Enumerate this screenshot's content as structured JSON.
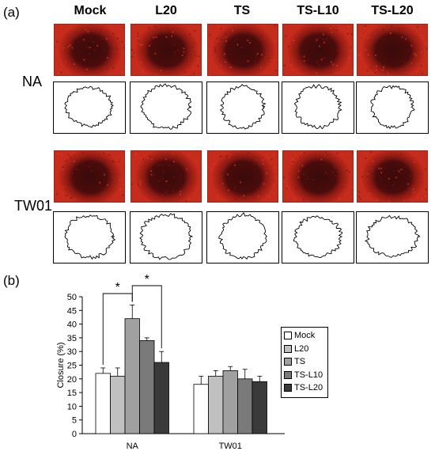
{
  "figure": {
    "panel_a_label": "(a)",
    "panel_b_label": "(b)",
    "column_headers": [
      "Mock",
      "L20",
      "TS",
      "TS-L10",
      "TS-L20"
    ],
    "row_labels": [
      "NA",
      "TW01"
    ]
  },
  "chart_data": {
    "type": "bar",
    "categories": [
      "NA",
      "TW01"
    ],
    "ylabel": "Closure (%)",
    "xlabel": "",
    "ylim": [
      0,
      50
    ],
    "yticks": [
      0,
      5,
      10,
      15,
      20,
      25,
      30,
      35,
      40,
      45,
      50
    ],
    "series": [
      {
        "name": "Mock",
        "values": [
          22,
          18
        ],
        "errors": [
          2,
          3
        ],
        "color": "#ffffff"
      },
      {
        "name": "L20",
        "values": [
          21,
          21
        ],
        "errors": [
          3,
          2
        ],
        "color": "#c0c0c0"
      },
      {
        "name": "TS",
        "values": [
          42,
          23
        ],
        "errors": [
          5,
          1.5
        ],
        "color": "#a0a0a0"
      },
      {
        "name": "TS-L10",
        "values": [
          34,
          20
        ],
        "errors": [
          1,
          3.5
        ],
        "color": "#7a7a7a"
      },
      {
        "name": "TS-L20",
        "values": [
          26,
          19
        ],
        "errors": [
          4,
          2
        ],
        "color": "#3a3a3a"
      }
    ],
    "annotations": [
      {
        "text": "*",
        "from": "Mock",
        "to": "TS",
        "group": "NA"
      },
      {
        "text": "*",
        "from": "TS",
        "to": "TS-L20",
        "group": "NA"
      }
    ],
    "legend_position": "right",
    "grid": false
  }
}
